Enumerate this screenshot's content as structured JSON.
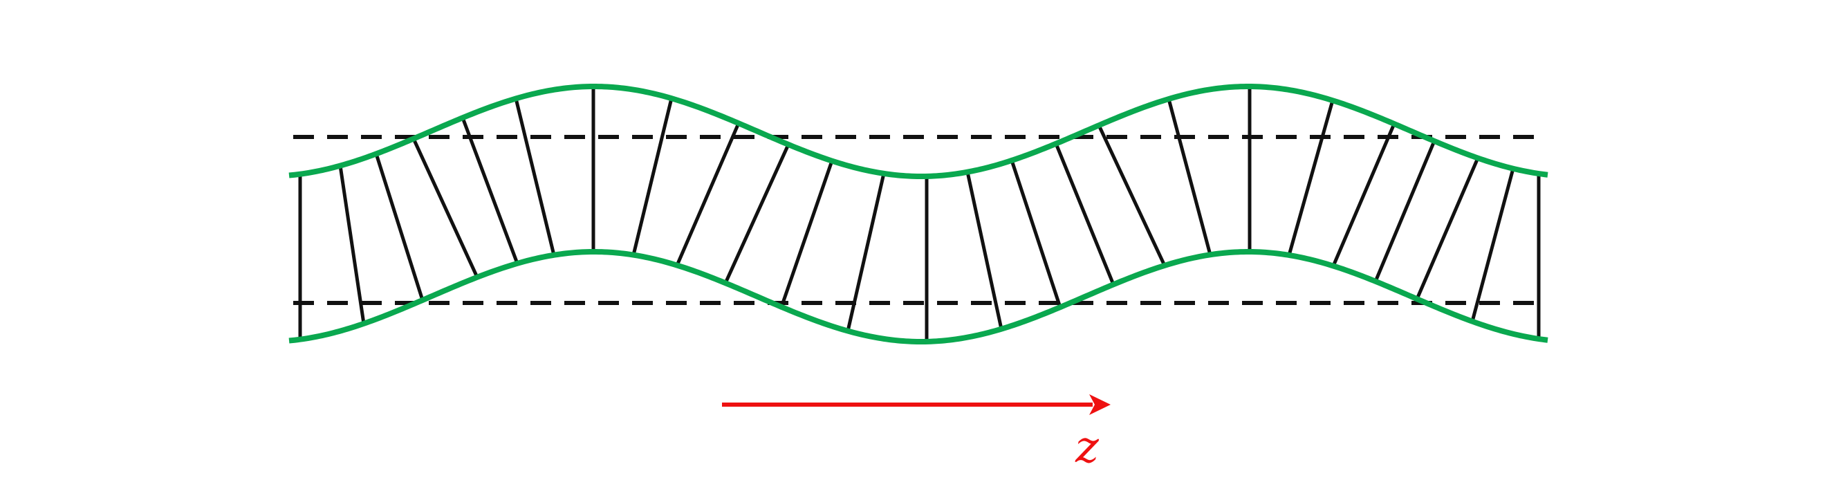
{
  "diagram": {
    "colors": {
      "boundary": "#0aa84f",
      "rungs": "#111111",
      "reference_lines": "#111111",
      "arrow": "#ee1111"
    },
    "direction_arrow": {
      "label": "z"
    }
  }
}
